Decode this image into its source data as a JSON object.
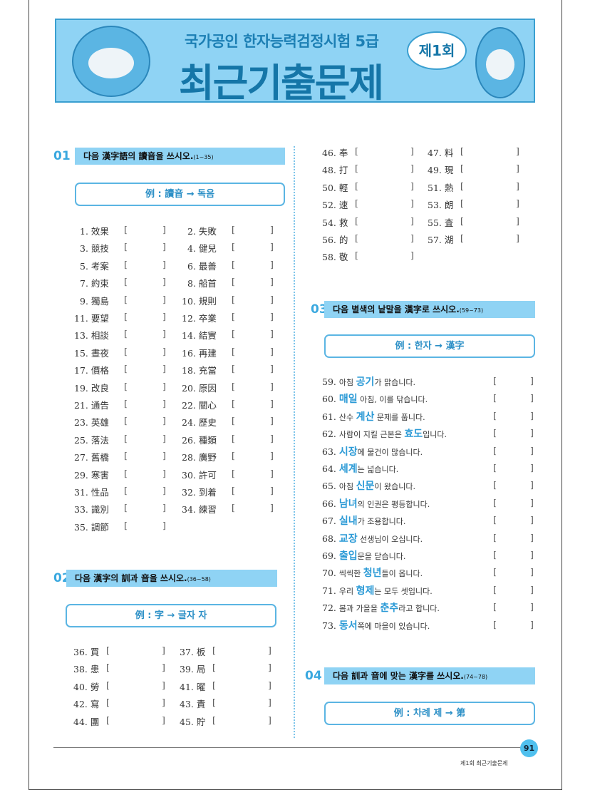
{
  "banner": {
    "subtitle": "국가공인 한자능력검정시험 5급",
    "title": "최근기출문제",
    "round": "제1회"
  },
  "sections": [
    {
      "num": "01",
      "instruction": "다음 漢字語의 讀音을 쓰시오.",
      "range": "(1~35)",
      "example": "例 : 讀音 → 독음"
    },
    {
      "num": "02",
      "instruction": "다음 漢字의 訓과 音을 쓰시오.",
      "range": "(36~58)",
      "example": "例 : 字 → 글자 자"
    },
    {
      "num": "03",
      "instruction": "다음 별색의 낱말을 漢字로 쓰시오.",
      "range": "(59~73)",
      "example": "例 : 한자 → 漢字"
    },
    {
      "num": "04",
      "instruction": "다음 訓과 音에 맞는 漢字를 쓰시오.",
      "range": "(74~78)",
      "example": "例 : 차례 제 → 第"
    }
  ],
  "q01": [
    "效果",
    "失敗",
    "競技",
    "健兒",
    "考案",
    "最善",
    "約束",
    "船首",
    "獨島",
    "規則",
    "要望",
    "卒業",
    "相談",
    "結實",
    "晝夜",
    "再建",
    "價格",
    "充當",
    "改良",
    "原因",
    "通告",
    "關心",
    "英雄",
    "歷史",
    "落法",
    "種類",
    "舊橋",
    "廣野",
    "寒害",
    "許可",
    "性品",
    "到着",
    "識別",
    "練習",
    "調節"
  ],
  "q02": [
    "買",
    "板",
    "患",
    "局",
    "勞",
    "曜",
    "寫",
    "責",
    "團",
    "貯",
    "奉",
    "料",
    "打",
    "現",
    "輕",
    "熱",
    "速",
    "朗",
    "救",
    "査",
    "的",
    "湖",
    "敬"
  ],
  "q03": [
    [
      "아침 ",
      "공기",
      "가 맑습니다."
    ],
    [
      "",
      "매일",
      " 아침, 이를 닦습니다."
    ],
    [
      "산수 ",
      "계산",
      " 문제를 풉니다."
    ],
    [
      "사람이 지킬 근본은 ",
      "효도",
      "입니다."
    ],
    [
      "",
      "시장",
      "에 물건이 많습니다."
    ],
    [
      "",
      "세계",
      "는 넓습니다."
    ],
    [
      "아침 ",
      "신문",
      "이 왔습니다."
    ],
    [
      "",
      "남녀",
      "의 인권은 평등합니다."
    ],
    [
      "",
      "실내",
      "가 조용합니다."
    ],
    [
      "",
      "교장",
      " 선생님이 오십니다."
    ],
    [
      "",
      "출입",
      "문을 닫습니다."
    ],
    [
      "씩씩한 ",
      "청년",
      "들이 옵니다."
    ],
    [
      "우리 ",
      "형제",
      "는 모두 셋입니다."
    ],
    [
      "봄과 가을을 ",
      "춘추",
      "라고 합니다."
    ],
    [
      "",
      "동서",
      "쪽에 마을이 있습니다."
    ]
  ],
  "footer": {
    "page": "91",
    "caption": "제1회 최근기출문제"
  },
  "colors": {
    "accent": "#8fd3f4",
    "highlight": "#2b9ad6"
  }
}
